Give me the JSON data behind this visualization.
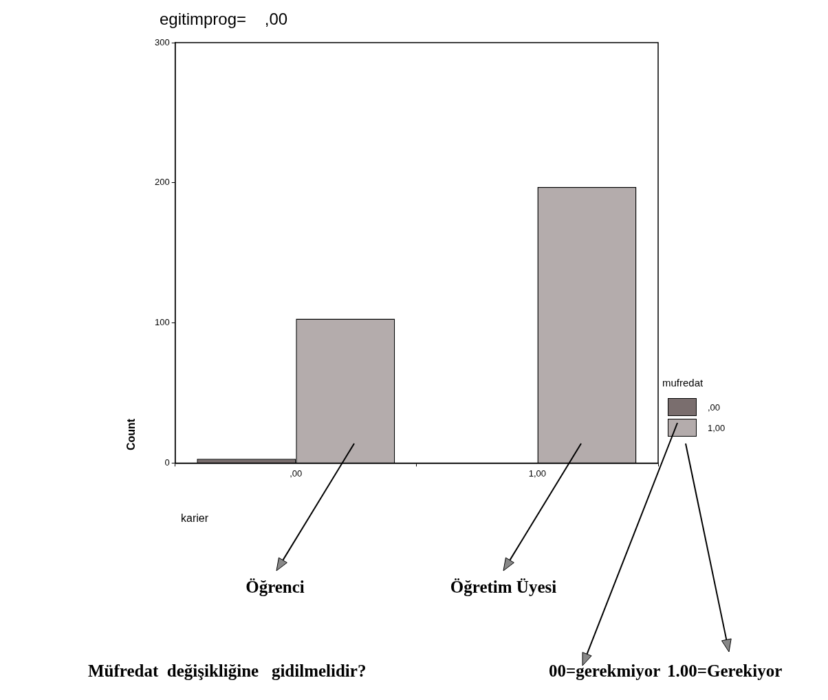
{
  "chart_data": {
    "type": "bar",
    "title": "egitimprog=    ,00",
    "xlabel": "karier",
    "ylabel": "Count",
    "legend_title": "mufredat",
    "categories": [
      ",00",
      "1,00"
    ],
    "series": [
      {
        "name": ",00",
        "color": "#7a6e6e",
        "values": [
          3,
          0
        ]
      },
      {
        "name": "1,00",
        "color": "#b4acac",
        "values": [
          103,
          197
        ]
      }
    ],
    "ylim": [
      0,
      300
    ],
    "yticks": [
      0,
      100,
      200,
      300
    ],
    "grid": false,
    "legend": "right",
    "annotations": [
      "Öğrenci",
      "Öğretim Üyesi",
      "Müfredat  değişikliğine   gidilmelidir?",
      "00=gerekmiyor",
      "1.00=Gerekiyor"
    ]
  }
}
